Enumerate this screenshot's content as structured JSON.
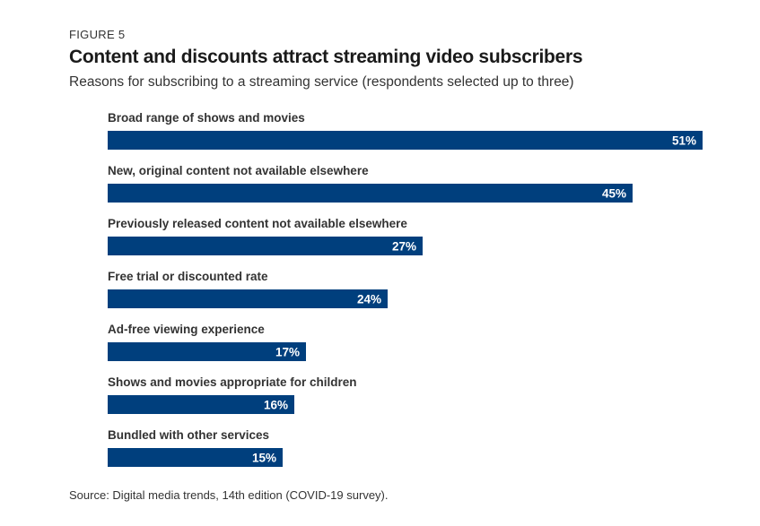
{
  "figure_label": "FIGURE 5",
  "chart_data": {
    "type": "bar",
    "orientation": "horizontal",
    "title": "Content and discounts attract streaming video subscribers",
    "subtitle": "Reasons for subscribing to a streaming service (respondents selected up to three)",
    "categories": [
      "Broad range of shows and movies",
      "New, original content not available elsewhere",
      "Previously released content not available elsewhere",
      "Free trial or discounted rate",
      "Ad-free viewing experience",
      "Shows and movies appropriate for children",
      "Bundled with other services"
    ],
    "values": [
      51,
      45,
      27,
      24,
      17,
      16,
      15
    ],
    "value_labels": [
      "51%",
      "45%",
      "27%",
      "24%",
      "17%",
      "16%",
      "15%"
    ],
    "xlim": [
      0,
      51
    ],
    "bar_color": "#003f7d",
    "grid": false,
    "legend": false
  },
  "source": "Source: Digital media trends, 14th edition (COVID-19 survey)."
}
